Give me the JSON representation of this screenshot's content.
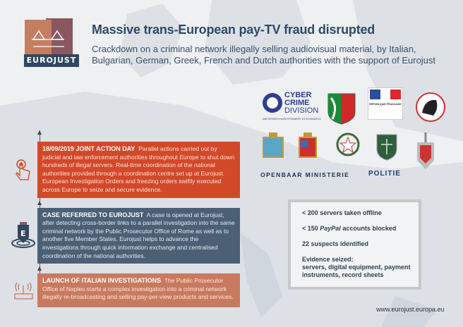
{
  "logo": {
    "text": "EUROJUST"
  },
  "header": {
    "title": "Massive trans-European pay-TV fraud disrupted",
    "subtitle": "Crackdown on a criminal network illegally selling audiovisual material, by Italian, Bulgarian, German, Greek, French and Dutch authorities with the support of Eurojust"
  },
  "timeline": [
    {
      "heading": "18/09/2019 JOINT ACTION DAY",
      "text": "Parallel actions carried out by judicial and law enforcement authorities throughout Europe to shut down hundreds of illegal servers. Real-time coordination of the national authorities provided through a coordination centre set up at Eurojust. European Investigation Orders and freezing orders swiftly executed across Europe to seize and secure evidence.",
      "icon": "hand-pointer-icon",
      "color": "#d2492a"
    },
    {
      "heading": "CASE REFERRED TO EUROJUST",
      "text": "A case is opened at Eurojust, after detecting cross-border links to a parallel investigation into the same criminal network by the Public Prosecutor Office of Rome as well as to another five Member States. Eurojust helps to advance the investigations through quick information exchange and centralised coordination of the national authorities.",
      "icon": "location-pin-e-icon",
      "color": "#4c6075"
    },
    {
      "heading": "LAUNCH OF ITALIAN INVESTIGATIONS",
      "text": "The Public Prosecutor Office of Naples starts a complex investigation into a criminal network illegally re-broadcasting and selling pay-per-view products and services.",
      "icon": "router-icon",
      "color": "#c97a5e"
    }
  ],
  "partners": {
    "cyber": [
      "CYBER",
      "CRIME",
      "DIVISION"
    ],
    "cyber_sub": "ΔΙΕΥΘΥΝΣΗ ΗΛΕΚΤΡΟΝΙΚΟΥ ΕΓΚΛΗΜΑΤΟΣ",
    "france": "RÉPUBLIQUE FRANÇAISE",
    "om": "OPENBAAR MINISTERIE",
    "politie": "POLITIE"
  },
  "stats": {
    "servers": "< 200 servers taken offline",
    "paypal_pre": "< 150 ",
    "paypal_brand": "PayPal",
    "paypal_post": " accounts blocked",
    "suspects": "22 suspects identified",
    "evidence_label": "Evidence seized:",
    "evidence": "servers, digital equipment, payment instruments, record sheets"
  },
  "footer": {
    "url": "www.eurojust.europa.eu"
  }
}
